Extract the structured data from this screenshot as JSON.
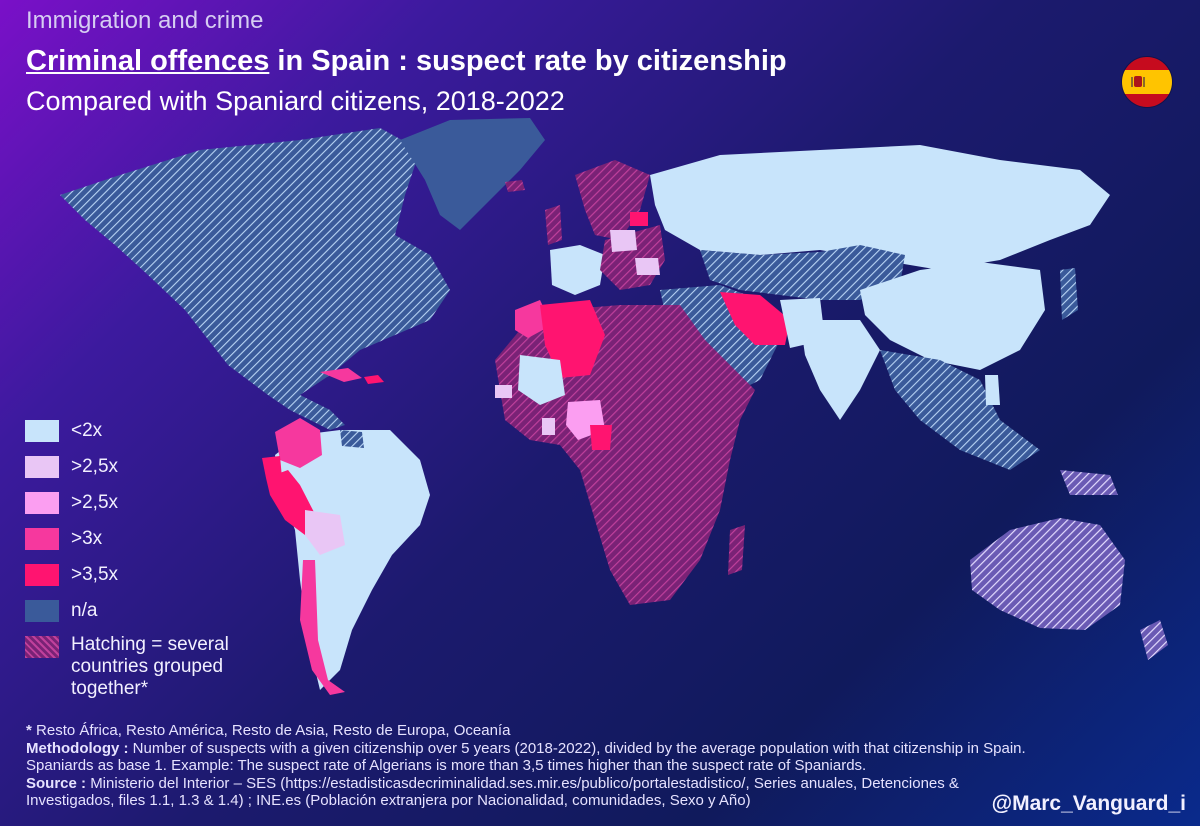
{
  "header": {
    "kicker": "Immigration and crime",
    "title_underlined": "Criminal offences",
    "title_rest": " in Spain : suspect rate by citizenship",
    "subtitle": "Compared with Spaniard citizens, 2018-2022",
    "flag": "spain-flag"
  },
  "colors": {
    "lt2": "#c8e4fb",
    "gt25a": "#e9c6f5",
    "gt25b": "#fb9ef1",
    "gt3": "#f6389e",
    "gt35": "#ff1470",
    "na": "#3a5a9a",
    "hatch": "#a43090"
  },
  "legend": [
    {
      "label": "<2x",
      "color": "#c8e4fb"
    },
    {
      "label": ">2,5x",
      "color": "#e9c6f5"
    },
    {
      "label": ">2,5x",
      "color": "#fb9ef1"
    },
    {
      "label": ">3x",
      "color": "#f6389e"
    },
    {
      "label": ">3,5x",
      "color": "#ff1470"
    },
    {
      "label": "n/a",
      "color": "#3a5a9a"
    },
    {
      "label": "Hatching = several countries grouped together*",
      "color": "hatch"
    }
  ],
  "notes": {
    "footnote_mark": "* ",
    "footnote": "Resto África, Resto América, Resto de Asia, Resto de Europa, Oceanía",
    "methodology_label": "Methodology : ",
    "methodology": "Number of suspects with a given citizenship over 5 years (2018-2022), divided by the average population with that citizenship in Spain. Spaniards  as base 1. Example: The suspect rate of Algerians is more than 3,5 times higher than the suspect rate of Spaniards.",
    "source_label": "Source : ",
    "source": "Ministerio del Interior – SES (https://estadisticasdecriminalidad.ses.mir.es/publico/portalestadistico/, Series anuales, Detenciones & Investigados, files 1.1, 1.3 & 1.4) ; INE.es (Población extranjera por Nacionalidad, comunidades, Sexo y Año)"
  },
  "handle": "@Marc_Vanguard_i"
}
